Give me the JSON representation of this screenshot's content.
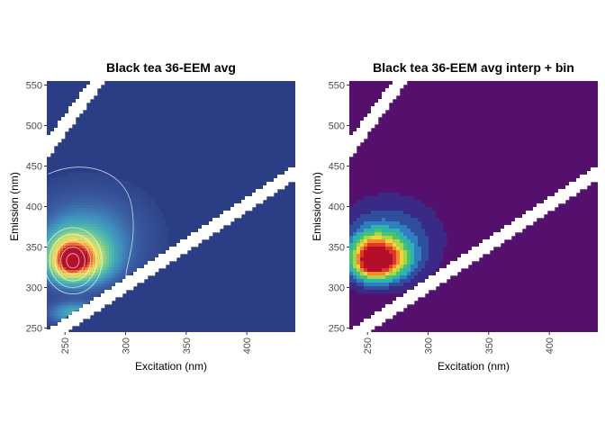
{
  "chart_data": [
    {
      "type": "heatmap",
      "title": "Black tea 36-EEM avg",
      "xlabel": "Excitation (nm)",
      "ylabel": "Emission (nm)",
      "xlim": [
        235,
        440
      ],
      "ylim": [
        245,
        555
      ],
      "xticks": [
        250,
        300,
        350,
        400
      ],
      "yticks": [
        250,
        300,
        350,
        400,
        450,
        500,
        550
      ],
      "style": "continuous-with-contours",
      "background_color": "#2b3d84",
      "peaks": [
        {
          "ex": 255,
          "em": 333,
          "intensity": 1.0
        },
        {
          "ex": 258,
          "em": 268,
          "intensity": 0.32
        }
      ],
      "scatter_bands": [
        "first-order Rayleigh",
        "second-order Rayleigh"
      ],
      "legend": "none",
      "grid": false
    },
    {
      "type": "heatmap",
      "title": "Black tea 36-EEM avg interp + bin",
      "xlabel": "Excitation (nm)",
      "ylabel": "Emission (nm)",
      "xlim": [
        235,
        440
      ],
      "ylim": [
        245,
        555
      ],
      "xticks": [
        250,
        300,
        350,
        400
      ],
      "yticks": [
        250,
        300,
        350,
        400,
        450,
        500,
        550
      ],
      "style": "binned",
      "background_color": "#55106e",
      "peaks": [
        {
          "ex": 255,
          "em": 333,
          "intensity": 1.0
        }
      ],
      "scatter_bands": [
        "first-order Rayleigh",
        "second-order Rayleigh"
      ],
      "legend": "none",
      "grid": false
    }
  ]
}
